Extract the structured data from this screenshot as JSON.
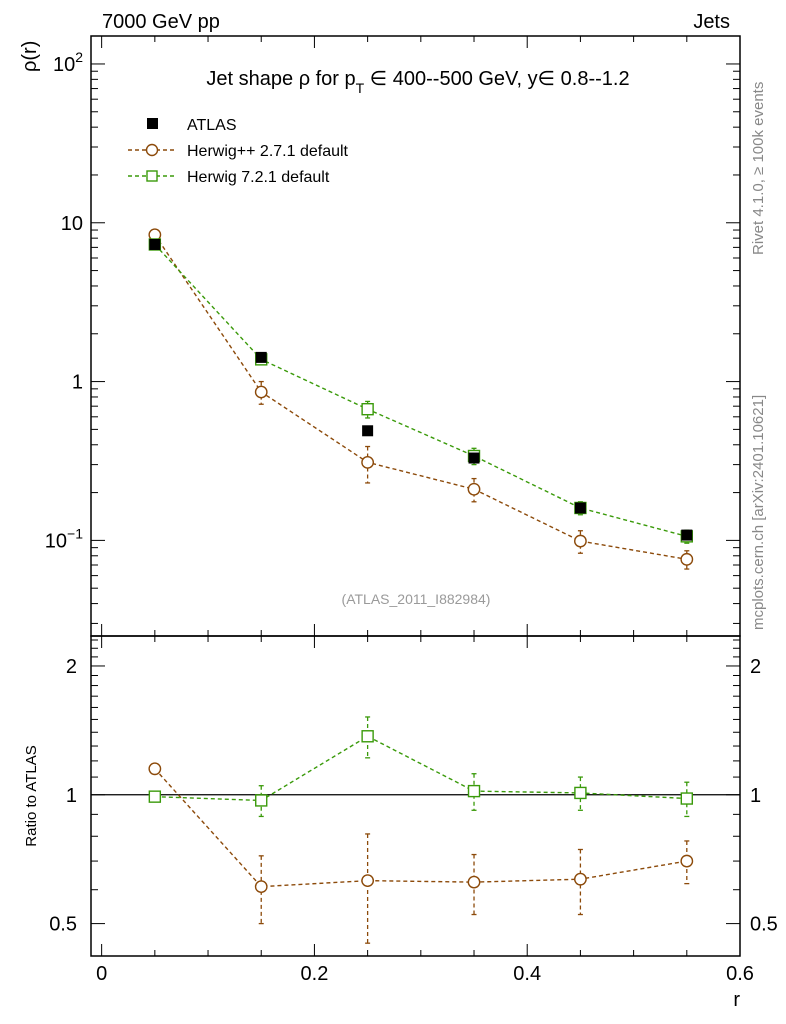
{
  "header": {
    "left": "7000 GeV pp",
    "right": "Jets"
  },
  "side": {
    "rivet": "Rivet 4.1.0, ≥ 100k events",
    "mcplots": "mcplots.cern.ch [arXiv:2401.10621]"
  },
  "colors": {
    "atlas": "#000000",
    "herwigpp": "#8c4a0a",
    "herwig7": "#3a9a0a",
    "watermark": "#9a9a9a"
  },
  "chart_data": [
    {
      "type": "line",
      "panel": "main",
      "title": "Jet shape ρ for p_T ∈ 400--500 GeV, y∈ 0.8--1.2",
      "title_parts": {
        "prefix": "Jet shape ρ for p",
        "sub": "T",
        "suffix": " ∈ 400--500 GeV, y∈ 0.8--1.2"
      },
      "ylabel": "ρ(r)",
      "xlabel": "r",
      "yscale": "log",
      "xlim": [
        -0.01,
        0.6
      ],
      "ylim": [
        0.025,
        150
      ],
      "x_ticks": [
        "0",
        "0.2",
        "0.4",
        "0.6"
      ],
      "y_ticks": [
        {
          "value": 0.1,
          "mantissa": "10",
          "exp": "−1"
        },
        {
          "value": 1,
          "mantissa": "1",
          "exp": ""
        },
        {
          "value": 10,
          "mantissa": "10",
          "exp": ""
        },
        {
          "value": 100,
          "mantissa": "10",
          "exp": "2"
        }
      ],
      "watermark": "(ATLAS_2011_I882984)",
      "legend": [
        "ATLAS",
        "Herwig++ 2.7.1 default",
        "Herwig 7.2.1 default"
      ],
      "x": [
        0.05,
        0.15,
        0.25,
        0.35,
        0.45,
        0.55
      ],
      "series": [
        {
          "name": "ATLAS",
          "marker": "filled-square",
          "values": [
            7.3,
            1.42,
            0.49,
            0.33,
            0.16,
            0.108
          ],
          "err_lo": [
            0.3,
            0.08,
            0.02,
            0.02,
            0.01,
            0.006
          ],
          "err_hi": [
            0.3,
            0.08,
            0.02,
            0.02,
            0.01,
            0.006
          ]
        },
        {
          "name": "Herwig++ 2.7.1 default",
          "marker": "open-circle",
          "style": "dashed",
          "values": [
            8.4,
            0.86,
            0.31,
            0.21,
            0.099,
            0.076
          ],
          "err_lo": [
            0.5,
            0.14,
            0.08,
            0.035,
            0.016,
            0.01
          ],
          "err_hi": [
            0.5,
            0.14,
            0.08,
            0.035,
            0.016,
            0.01
          ]
        },
        {
          "name": "Herwig 7.2.1 default",
          "marker": "open-square",
          "style": "dashed",
          "values": [
            7.3,
            1.38,
            0.67,
            0.34,
            0.16,
            0.106
          ],
          "err_lo": [
            0.4,
            0.1,
            0.08,
            0.04,
            0.015,
            0.01
          ],
          "err_hi": [
            0.4,
            0.1,
            0.08,
            0.04,
            0.015,
            0.01
          ]
        }
      ]
    },
    {
      "type": "line",
      "panel": "ratio",
      "ylabel": "Ratio to ATLAS",
      "xlabel": "r",
      "yscale": "log",
      "xlim": [
        -0.01,
        0.6
      ],
      "ylim": [
        0.42,
        2.35
      ],
      "y_ticks": [
        "0.5",
        "1",
        "2"
      ],
      "y_tick_values": [
        0.5,
        1,
        2
      ],
      "reference_line": 1,
      "x": [
        0.05,
        0.15,
        0.25,
        0.35,
        0.45,
        0.55
      ],
      "series": [
        {
          "name": "Herwig++ 2.7.1 default",
          "marker": "open-circle",
          "values": [
            1.15,
            0.61,
            0.63,
            0.625,
            0.635,
            0.7
          ],
          "err_lo": [
            0.0,
            0.11,
            0.18,
            0.1,
            0.11,
            0.08
          ],
          "err_hi": [
            0.0,
            0.11,
            0.18,
            0.1,
            0.11,
            0.08
          ]
        },
        {
          "name": "Herwig 7.2.1 default",
          "marker": "open-square",
          "values": [
            0.99,
            0.97,
            1.37,
            1.02,
            1.01,
            0.98
          ],
          "err_lo": [
            0.0,
            0.08,
            0.15,
            0.1,
            0.09,
            0.09
          ],
          "err_hi": [
            0.0,
            0.08,
            0.15,
            0.1,
            0.09,
            0.09
          ]
        }
      ]
    }
  ]
}
